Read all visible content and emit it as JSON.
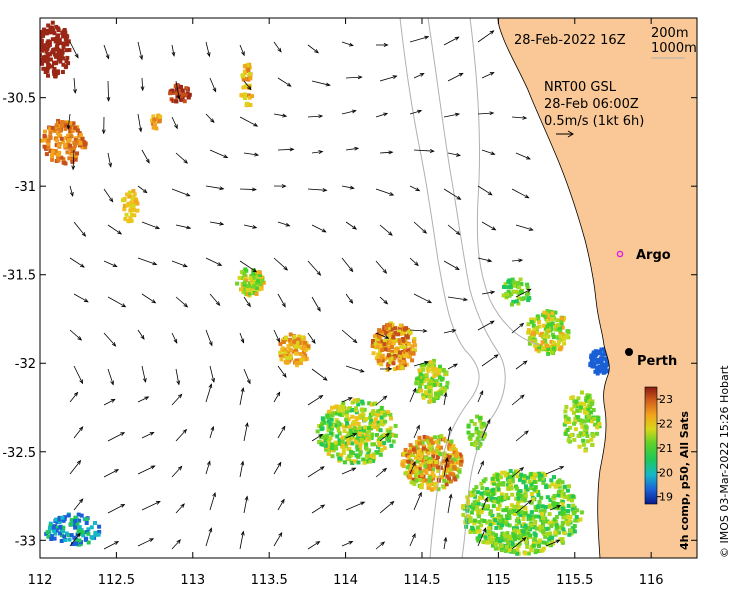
{
  "map": {
    "x_ticks": [
      "112",
      "112.5",
      "113",
      "113.5",
      "114",
      "114.5",
      "115",
      "115.5",
      "116"
    ],
    "y_ticks": [
      "-30.5",
      "-31",
      "-31.5",
      "-32",
      "-32.5",
      "-33"
    ],
    "date_label": "28-Feb-2022 16Z",
    "depth_legend": [
      "200m",
      "1000m"
    ],
    "current_title": "NRT00 GSL",
    "current_time": "28-Feb 06:00Z",
    "current_scale": "0.5m/s (1kt 6h)",
    "places": [
      {
        "name": "Argo",
        "lon": 115.85,
        "lat": -31.45
      },
      {
        "name": "Perth",
        "lon": 115.86,
        "lat": -31.95
      }
    ],
    "colorbar": {
      "title": "4h comp, p50, All Sats",
      "ticks": [
        "23",
        "22",
        "21",
        "20",
        "19"
      ],
      "min": 18.7,
      "max": 23.5
    },
    "credit": "© IMOS 03-Mar-2022 15:26 Hobart",
    "colors": {
      "land": "#f9c896",
      "contour": "#b0b0b0"
    }
  }
}
